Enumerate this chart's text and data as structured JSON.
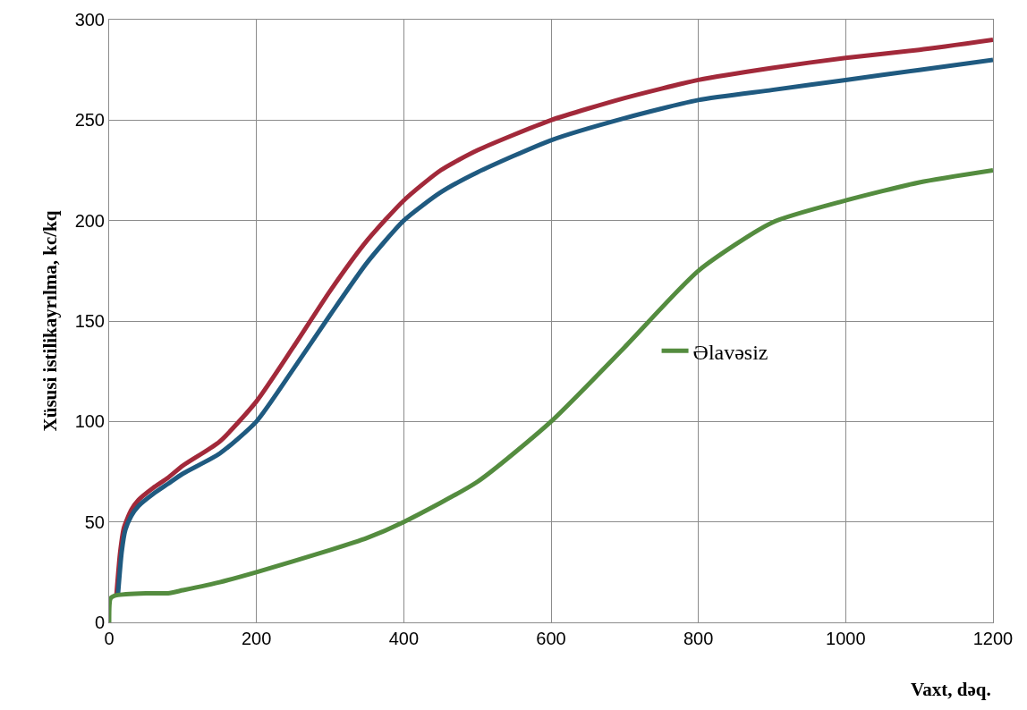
{
  "chart_data": {
    "type": "line",
    "xlabel": "Vaxt, dəq.",
    "ylabel": "Xüsusi istilikayrılma, kc/kq",
    "series": [
      {
        "color": "#a2293a",
        "x": [
          10,
          15,
          20,
          30,
          40,
          60,
          80,
          100,
          150,
          200,
          250,
          300,
          350,
          400,
          450,
          500,
          600,
          700,
          800,
          900,
          1000,
          1100,
          1200
        ],
        "values": [
          14,
          35,
          47,
          56,
          61,
          67,
          72,
          78,
          90,
          110,
          137,
          165,
          190,
          210,
          225,
          235,
          250,
          261,
          270,
          276,
          281,
          285,
          290
        ]
      },
      {
        "color": "#1f5a80",
        "x": [
          12,
          17,
          22,
          30,
          40,
          60,
          80,
          100,
          150,
          200,
          250,
          300,
          350,
          400,
          450,
          500,
          600,
          700,
          800,
          900,
          1000,
          1100,
          1200
        ],
        "values": [
          14,
          35,
          46,
          53,
          58,
          64,
          69,
          74,
          84,
          100,
          126,
          153,
          179,
          200,
          214,
          224,
          240,
          251,
          260,
          265,
          270,
          275,
          280
        ]
      },
      {
        "name": "Əlavəsiz",
        "color": "#548c3f",
        "x": [
          0,
          2,
          10,
          50,
          80,
          100,
          150,
          200,
          300,
          350,
          400,
          500,
          600,
          700,
          800,
          900,
          1000,
          1100,
          1200
        ],
        "values": [
          0,
          12,
          13.5,
          14.5,
          14.5,
          16,
          20,
          25,
          36,
          42,
          50,
          70,
          100,
          137,
          175,
          199,
          210,
          219,
          225
        ]
      }
    ],
    "xlim": [
      0,
      1200
    ],
    "xticks": [
      0,
      200,
      400,
      600,
      800,
      1000,
      1200
    ],
    "ylim": [
      0,
      300
    ],
    "yticks": [
      0,
      50,
      100,
      150,
      200,
      250,
      300
    ],
    "grid": true,
    "legend": "right",
    "marker": "none",
    "line_style": "solid"
  }
}
